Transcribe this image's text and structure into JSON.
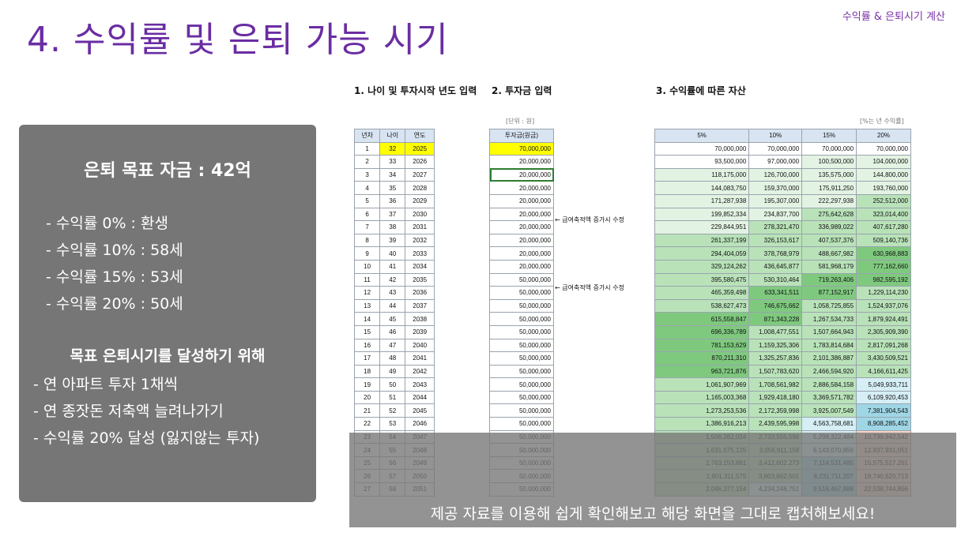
{
  "header": {
    "tag": "수익률 & 은퇴시기 계산",
    "title": "4. 수익률 및 은퇴 가능 시기"
  },
  "card": {
    "goal": "은퇴 목표 자금 : 42억",
    "rates": [
      "- 수익률    0% : 환생",
      "- 수익률 10% : 58세",
      "- 수익률 15% : 53세",
      "- 수익률 20% : 50세"
    ],
    "plan_title": "목표 은퇴시기를 달성하기 위해",
    "plans": [
      "- 연 아파트 투자 1채씩",
      "- 연 종잣돈 저축액 늘려나가기",
      "- 수익률 20% 달성 (잃지않는 투자)"
    ]
  },
  "sections": {
    "s1": "1. 나이 및 투자시작 년도 입력",
    "s2": "2. 투자금 입력",
    "s3": "3. 수익률에 따른 자산",
    "unit_left": "[단위 : 원]",
    "unit_right": "[%는 년 수익률]"
  },
  "notes": {
    "n1": "← 급여축적액 증가시 수정",
    "n2": "← 급여축적액 증가시 수정"
  },
  "table_headers": {
    "ages": [
      "년차",
      "나이",
      "연도"
    ],
    "investment": "투자금(원금)",
    "returns": [
      "5%",
      "10%",
      "15%",
      "20%"
    ]
  },
  "rows": [
    [
      "1",
      "32",
      "2025",
      "70,000,000",
      "70,000,000",
      "70,000,000",
      "70,000,000",
      "70,000,000"
    ],
    [
      "2",
      "33",
      "2026",
      "20,000,000",
      "93,500,000",
      "97,000,000",
      "100,500,000",
      "104,000,000"
    ],
    [
      "3",
      "34",
      "2027",
      "20,000,000",
      "118,175,000",
      "126,700,000",
      "135,575,000",
      "144,800,000"
    ],
    [
      "4",
      "35",
      "2028",
      "20,000,000",
      "144,083,750",
      "159,370,000",
      "175,911,250",
      "193,760,000"
    ],
    [
      "5",
      "36",
      "2029",
      "20,000,000",
      "171,287,938",
      "195,307,000",
      "222,297,938",
      "252,512,000"
    ],
    [
      "6",
      "37",
      "2030",
      "20,000,000",
      "199,852,334",
      "234,837,700",
      "275,642,628",
      "323,014,400"
    ],
    [
      "7",
      "38",
      "2031",
      "20,000,000",
      "229,844,951",
      "278,321,470",
      "336,989,022",
      "407,617,280"
    ],
    [
      "8",
      "39",
      "2032",
      "20,000,000",
      "261,337,199",
      "326,153,617",
      "407,537,376",
      "509,140,736"
    ],
    [
      "9",
      "40",
      "2033",
      "20,000,000",
      "294,404,059",
      "378,768,979",
      "488,667,982",
      "630,968,883"
    ],
    [
      "10",
      "41",
      "2034",
      "20,000,000",
      "329,124,262",
      "436,645,877",
      "581,968,179",
      "777,162,660"
    ],
    [
      "11",
      "42",
      "2035",
      "50,000,000",
      "395,580,475",
      "530,310,464",
      "719,263,406",
      "982,595,192"
    ],
    [
      "12",
      "43",
      "2036",
      "50,000,000",
      "465,359,498",
      "633,341,511",
      "877,152,917",
      "1,229,114,230"
    ],
    [
      "13",
      "44",
      "2037",
      "50,000,000",
      "538,627,473",
      "746,675,662",
      "1,058,725,855",
      "1,524,937,076"
    ],
    [
      "14",
      "45",
      "2038",
      "50,000,000",
      "615,558,847",
      "871,343,228",
      "1,267,534,733",
      "1,879,924,491"
    ],
    [
      "15",
      "46",
      "2039",
      "50,000,000",
      "696,336,789",
      "1,008,477,551",
      "1,507,664,943",
      "2,305,909,390"
    ],
    [
      "16",
      "47",
      "2040",
      "50,000,000",
      "781,153,629",
      "1,159,325,306",
      "1,783,814,684",
      "2,817,091,268"
    ],
    [
      "17",
      "48",
      "2041",
      "50,000,000",
      "870,211,310",
      "1,325,257,836",
      "2,101,386,887",
      "3,430,509,521"
    ],
    [
      "18",
      "49",
      "2042",
      "50,000,000",
      "963,721,876",
      "1,507,783,620",
      "2,466,594,920",
      "4,166,611,425"
    ],
    [
      "19",
      "50",
      "2043",
      "50,000,000",
      "1,061,907,969",
      "1,708,561,982",
      "2,886,584,158",
      "5,049,933,711"
    ],
    [
      "20",
      "51",
      "2044",
      "50,000,000",
      "1,165,003,368",
      "1,929,418,180",
      "3,369,571,782",
      "6,109,920,453"
    ],
    [
      "21",
      "52",
      "2045",
      "50,000,000",
      "1,273,253,536",
      "2,172,359,998",
      "3,925,007,549",
      "7,381,904,543"
    ],
    [
      "22",
      "53",
      "2046",
      "50,000,000",
      "1,386,916,213",
      "2,439,595,998",
      "4,563,758,681",
      "8,908,285,452"
    ],
    [
      "23",
      "54",
      "2047",
      "50,000,000",
      "1,506,262,024",
      "2,733,555,598",
      "5,298,322,484",
      "10,739,942,542"
    ],
    [
      "24",
      "55",
      "2048",
      "50,000,000",
      "1,631,575,125",
      "3,056,911,158",
      "6,143,070,856",
      "12,937,931,051"
    ],
    [
      "25",
      "56",
      "2049",
      "50,000,000",
      "1,763,153,881",
      "3,412,602,273",
      "7,114,531,485",
      "15,575,517,261"
    ],
    [
      "26",
      "57",
      "2050",
      "50,000,000",
      "1,901,311,575",
      "3,803,862,501",
      "8,231,711,207",
      "18,740,620,713"
    ],
    [
      "27",
      "58",
      "2051",
      "50,000,000",
      "2,046,377,154",
      "4,234,248,751",
      "9,516,467,888",
      "22,538,744,856"
    ]
  ],
  "colors": {
    "title": "#6a2da3",
    "green_light": "#e3f3e3",
    "green_mid": "#b9e2b9",
    "green_dark": "#7fc97f",
    "blue_light": "#d6eef5",
    "blue_mid": "#9fd6e6",
    "salmon": "#f9d5c7"
  },
  "caption": "제공 자료를 이용해 쉽게 확인해보고 해당 화면을 그대로 캡처해보세요!"
}
